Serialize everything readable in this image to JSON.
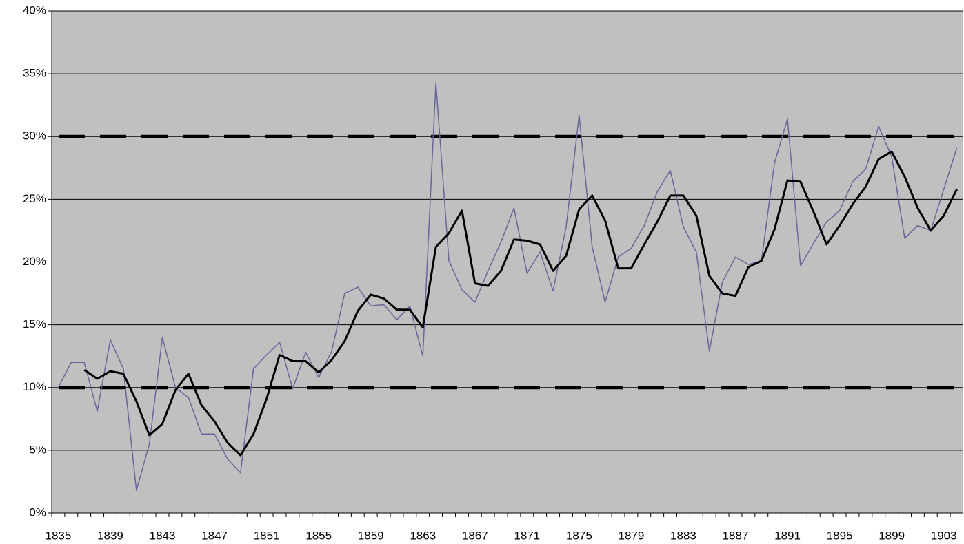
{
  "chart_data": {
    "type": "line",
    "categories": [
      "1835",
      null,
      null,
      null,
      "1839",
      null,
      null,
      null,
      "1843",
      null,
      null,
      null,
      "1847",
      null,
      null,
      null,
      "1851",
      null,
      null,
      null,
      "1855",
      null,
      null,
      null,
      "1859",
      null,
      null,
      null,
      "1863",
      null,
      null,
      null,
      "1867",
      null,
      null,
      null,
      "1871",
      null,
      null,
      null,
      "1875",
      null,
      null,
      null,
      "1879",
      null,
      null,
      null,
      "1883",
      null,
      null,
      null,
      "1887",
      null,
      null,
      null,
      "1891",
      null,
      null,
      null,
      "1895",
      null,
      null,
      null,
      "1899",
      null,
      null,
      null,
      "1903",
      null
    ],
    "series": [
      {
        "color": "#666699",
        "width": 1.5,
        "values": [
          10.0,
          12.0,
          12.0,
          8.1,
          13.8,
          11.5,
          1.8,
          5.5,
          14.0,
          10.0,
          9.2,
          6.3,
          6.3,
          4.3,
          3.2,
          11.5,
          12.6,
          13.6,
          9.9,
          12.8,
          10.8,
          12.9,
          17.5,
          18.0,
          16.5,
          16.6,
          15.4,
          16.5,
          12.5,
          34.3,
          20.1,
          17.8,
          16.8,
          19.3,
          21.6,
          24.3,
          19.1,
          20.8,
          17.7,
          22.8,
          31.7,
          21.2,
          16.8,
          20.4,
          21.1,
          22.9,
          25.6,
          27.3,
          22.8,
          20.8,
          12.9,
          18.4,
          20.4,
          19.8,
          20.1,
          27.9,
          31.4,
          19.7,
          21.5,
          23.2,
          24.1,
          26.4,
          27.4,
          30.8,
          28.4,
          21.9,
          22.9,
          22.5,
          25.8,
          29.1
        ]
      },
      {
        "color": "#000000",
        "width": 3,
        "values": [
          null,
          null,
          11.4,
          10.7,
          11.3,
          11.1,
          8.9,
          6.2,
          7.1,
          9.8,
          11.1,
          8.6,
          7.3,
          5.6,
          4.6,
          6.3,
          9.1,
          12.6,
          12.1,
          12.1,
          11.2,
          12.2,
          13.7,
          16.1,
          17.4,
          17.1,
          16.2,
          16.2,
          14.8,
          21.2,
          22.3,
          24.1,
          18.3,
          18.1,
          19.3,
          21.8,
          21.7,
          21.4,
          19.3,
          20.5,
          24.2,
          25.3,
          23.3,
          19.5,
          19.5,
          21.4,
          23.2,
          25.3,
          25.3,
          23.7,
          18.9,
          17.5,
          17.3,
          19.6,
          20.1,
          22.6,
          26.5,
          26.4,
          24.0,
          21.4,
          22.9,
          24.6,
          26.0,
          28.2,
          28.8,
          26.8,
          24.3,
          22.5,
          23.7,
          25.8
        ]
      }
    ],
    "reference_lines": [
      10,
      30
    ],
    "reference_color": "#000000",
    "ylim": [
      0,
      40
    ],
    "yticks": [
      {
        "value": 0,
        "label": "0%"
      },
      {
        "value": 5,
        "label": "5%"
      },
      {
        "value": 10,
        "label": "10%"
      },
      {
        "value": 15,
        "label": "15%"
      },
      {
        "value": 20,
        "label": "20%"
      },
      {
        "value": 25,
        "label": "25%"
      },
      {
        "value": 30,
        "label": "30%"
      },
      {
        "value": 35,
        "label": "35%"
      },
      {
        "value": 40,
        "label": "40%"
      }
    ],
    "grid": true,
    "plot_background": "#c0c0c0"
  }
}
